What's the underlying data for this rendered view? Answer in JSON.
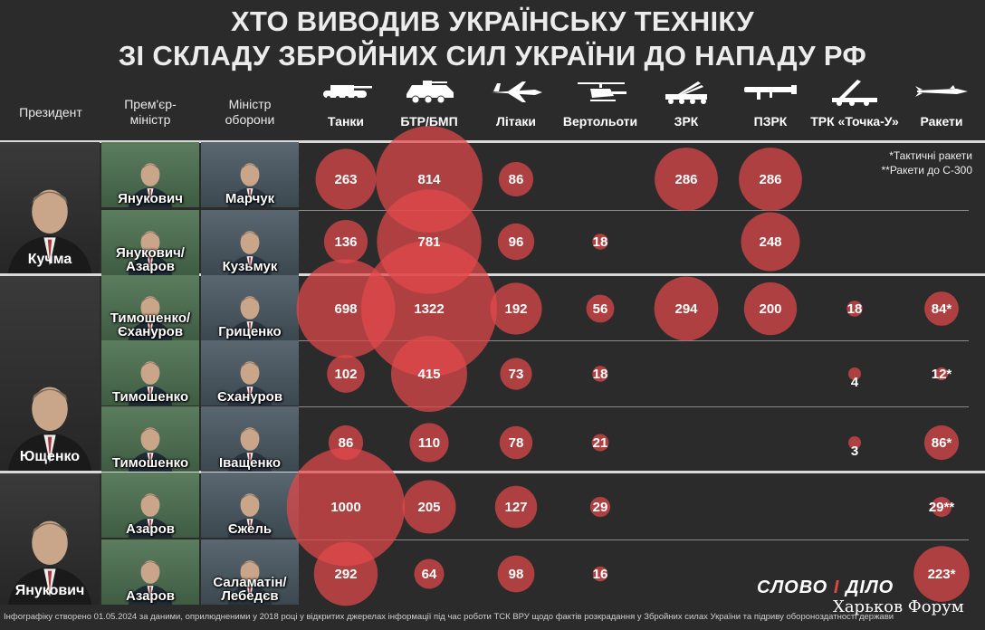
{
  "header": {
    "title_line1": "ХТО ВИВОДИВ УКРАЇНСЬКУ ТЕХНІКУ",
    "title_line2": "ЗІ СКЛАДУ ЗБРОЙНИХ СИЛ УКРАЇНИ ДО НАПАДУ РФ"
  },
  "columns": {
    "president": "Президент",
    "pm_line1": "Прем'єр-",
    "pm_line2": "міністр",
    "mod_line1": "Міністр",
    "mod_line2": "оборони"
  },
  "notes": {
    "line1": "*Тактичні ракети",
    "line2": "**Ракети до С-300"
  },
  "footer": "Інфографіку створено 01.05.2024 за даними, оприлюдненими у 2018 році у відкритих джерелах інформації під час роботи ТСК ВРУ щодо фактів розкрадання у Збройних силах України та підриву обороноздатності держави",
  "logo": {
    "left": "СЛОВО",
    "mid": "І",
    "right": "ДІЛО"
  },
  "watermark": "Харьков Форум",
  "presidents": [
    {
      "name": "Кучма"
    },
    {
      "name": "Ющенко"
    },
    {
      "name": "Янукович"
    }
  ],
  "rows": [
    {
      "pm": "Янукович",
      "mod": "Марчук"
    },
    {
      "pm": "Янукович/\nАзаров",
      "mod": "Кузьмук"
    },
    {
      "pm": "Тимошенко/\nЄхануров",
      "mod": "Гриценко"
    },
    {
      "pm": "Тимошенко",
      "mod": "Єхануров"
    },
    {
      "pm": "Тимошенко",
      "mod": "Іващенко"
    },
    {
      "pm": "Азаров",
      "mod": "Єжель"
    },
    {
      "pm": "Азаров",
      "mod": "Саламатін/\nЛебедєв"
    }
  ],
  "chart_data": {
    "type": "bubble-table",
    "title": "ХТО ВИВОДИВ УКРАЇНСЬКУ ТЕХНІКУ ЗІ СКЛАДУ ЗБРОЙНИХ СИЛ УКРАЇНИ ДО НАПАДУ РФ",
    "categories": [
      "Танки",
      "БТР/БМП",
      "Літаки",
      "Вертольоти",
      "ЗРК",
      "ПЗРК",
      "ТРК «Точка-У»",
      "Ракети"
    ],
    "icons": [
      "tank-icon",
      "apc-icon",
      "jet-icon",
      "helicopter-icon",
      "sam-icon",
      "manpads-icon",
      "tochka-icon",
      "missile-icon"
    ],
    "bubble_color": "#e2484a",
    "rows": [
      {
        "president": "Кучма",
        "pm": "Янукович",
        "mod": "Марчук",
        "values": [
          263,
          814,
          86,
          null,
          286,
          286,
          null,
          null
        ],
        "labels": [
          "263",
          "814",
          "86",
          "",
          "286",
          "286",
          "",
          ""
        ]
      },
      {
        "president": "Кучма",
        "pm": "Янукович/Азаров",
        "mod": "Кузьмук",
        "values": [
          136,
          781,
          96,
          18,
          null,
          248,
          null,
          null
        ],
        "labels": [
          "136",
          "781",
          "96",
          "18",
          "",
          "248",
          "",
          ""
        ]
      },
      {
        "president": "Ющенко",
        "pm": "Тимошенко/Єхануров",
        "mod": "Гриценко",
        "values": [
          698,
          1322,
          192,
          56,
          294,
          200,
          18,
          84
        ],
        "labels": [
          "698",
          "1322",
          "192",
          "56",
          "294",
          "200",
          "18",
          "84*"
        ]
      },
      {
        "president": "Ющенко",
        "pm": "Тимошенко",
        "mod": "Єхануров",
        "values": [
          102,
          415,
          73,
          18,
          null,
          null,
          4,
          12
        ],
        "labels": [
          "102",
          "415",
          "73",
          "18",
          "",
          "",
          "4",
          "12*"
        ]
      },
      {
        "president": "Ющенко",
        "pm": "Тимошенко",
        "mod": "Іващенко",
        "values": [
          86,
          110,
          78,
          21,
          null,
          null,
          3,
          86
        ],
        "labels": [
          "86",
          "110",
          "78",
          "21",
          "",
          "",
          "3",
          "86*"
        ]
      },
      {
        "president": "Янукович",
        "pm": "Азаров",
        "mod": "Єжель",
        "values": [
          1000,
          205,
          127,
          29,
          null,
          null,
          null,
          29
        ],
        "labels": [
          "1000",
          "205",
          "127",
          "29",
          "",
          "",
          "",
          "29**"
        ]
      },
      {
        "president": "Янукович",
        "pm": "Азаров",
        "mod": "Саламатін/Лебедєв",
        "values": [
          292,
          64,
          98,
          16,
          null,
          null,
          null,
          223
        ],
        "labels": [
          "292",
          "64",
          "98",
          "16",
          "",
          "",
          "",
          "223*"
        ]
      }
    ]
  }
}
